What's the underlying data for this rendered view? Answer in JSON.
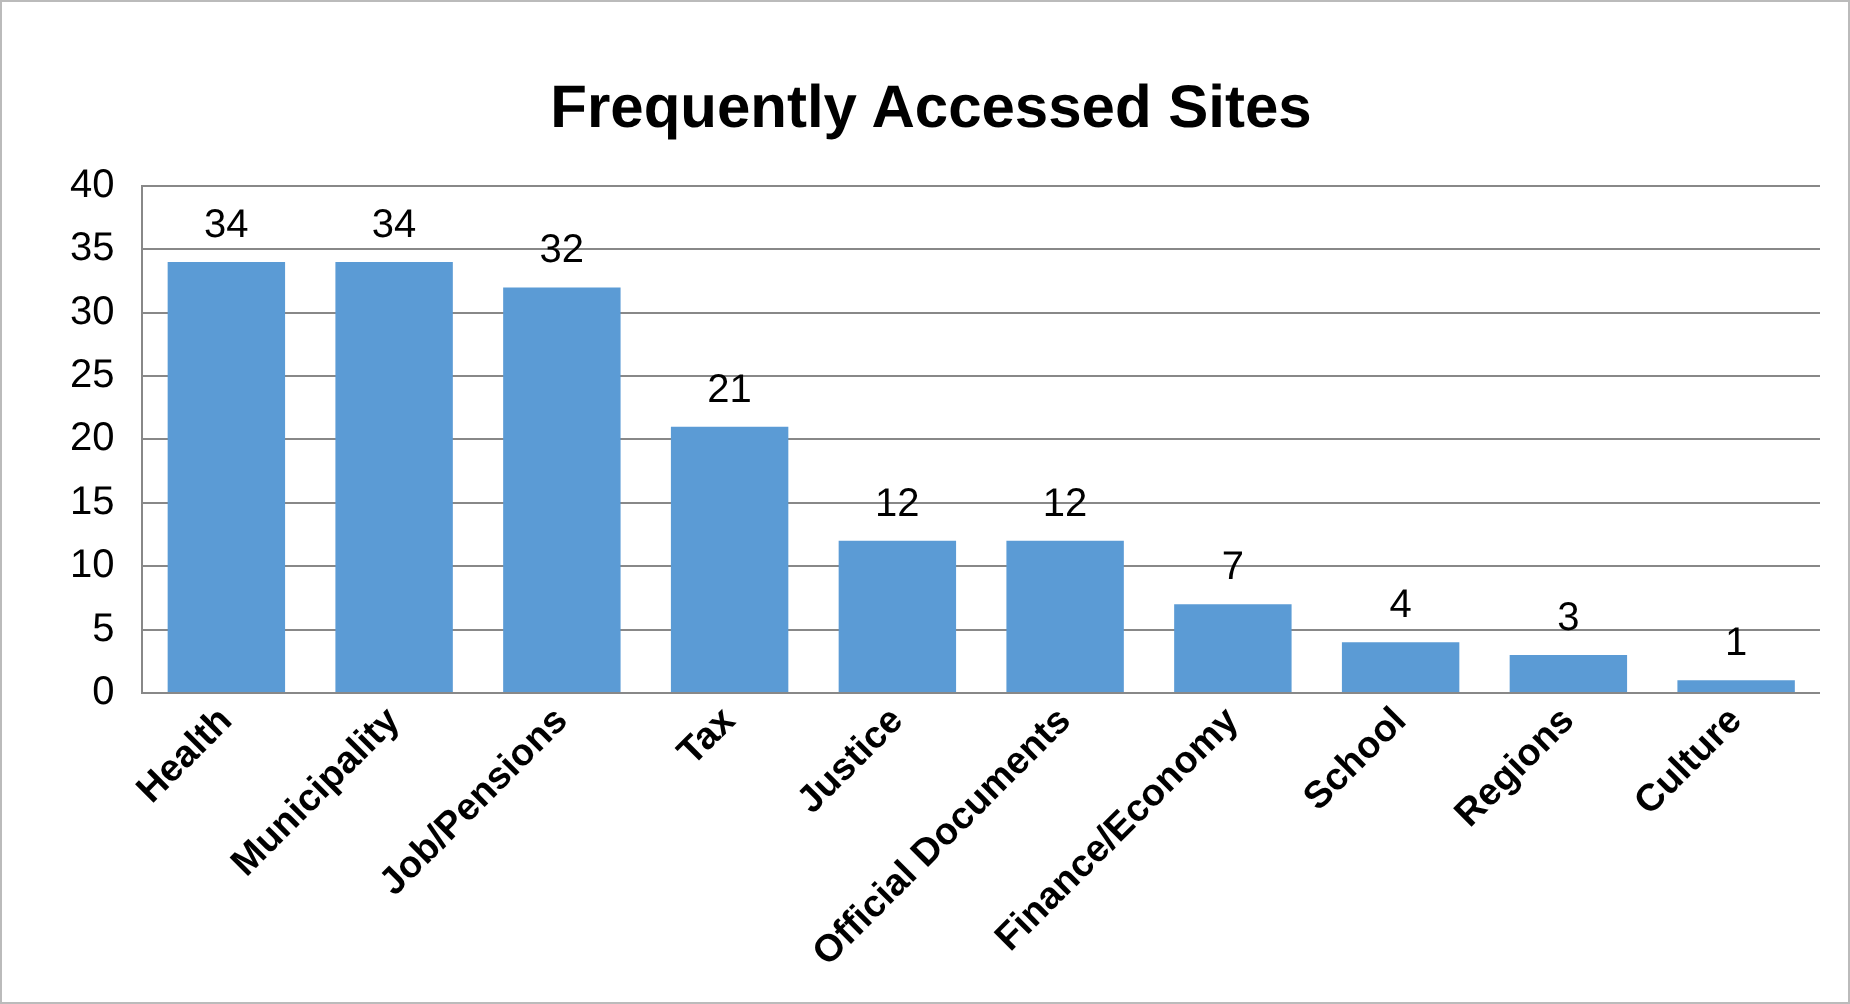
{
  "chart_data": {
    "type": "bar",
    "title": "Frequently Accessed Sites",
    "categories": [
      "Health",
      "Municipality",
      "Job/Pensions",
      "Tax",
      "Justice",
      "Official Documents",
      "Finance/Economy",
      "School",
      "Regions",
      "Culture"
    ],
    "values": [
      34,
      34,
      32,
      21,
      12,
      12,
      7,
      4,
      3,
      1
    ],
    "color": "#5b9bd5",
    "ylim": [
      0,
      40
    ],
    "yticks": [
      0,
      5,
      10,
      15,
      20,
      25,
      30,
      35,
      40
    ],
    "grid": "y",
    "data_labels": true,
    "legend": false
  }
}
